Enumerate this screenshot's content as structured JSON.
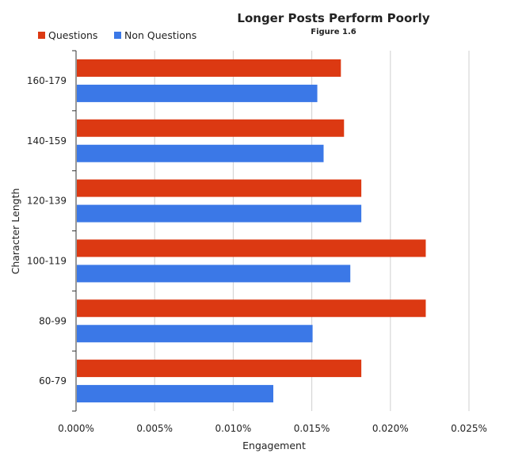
{
  "chart_data": {
    "type": "bar",
    "orientation": "horizontal",
    "title": "Longer Posts Perform Poorly",
    "subtitle": "Figure 1.6",
    "xlabel": "Engagement",
    "ylabel": "Character Length",
    "categories": [
      "160-179",
      "140-159",
      "120-139",
      "100-119",
      "80-99",
      "60-79"
    ],
    "series": [
      {
        "name": "Questions",
        "color": "#dc3912",
        "values": [
          0.000168,
          0.00017,
          0.000181,
          0.000222,
          0.000222,
          0.000181
        ]
      },
      {
        "name": "Non Questions",
        "color": "#3b78e7",
        "values": [
          0.000153,
          0.000157,
          0.000181,
          0.000174,
          0.00015,
          0.000125
        ]
      }
    ],
    "xlim": [
      0,
      0.00025
    ],
    "x_ticks": [
      "0.000%",
      "0.005%",
      "0.010%",
      "0.015%",
      "0.020%",
      "0.025%"
    ],
    "grid": true,
    "legend_position": "top-left"
  }
}
